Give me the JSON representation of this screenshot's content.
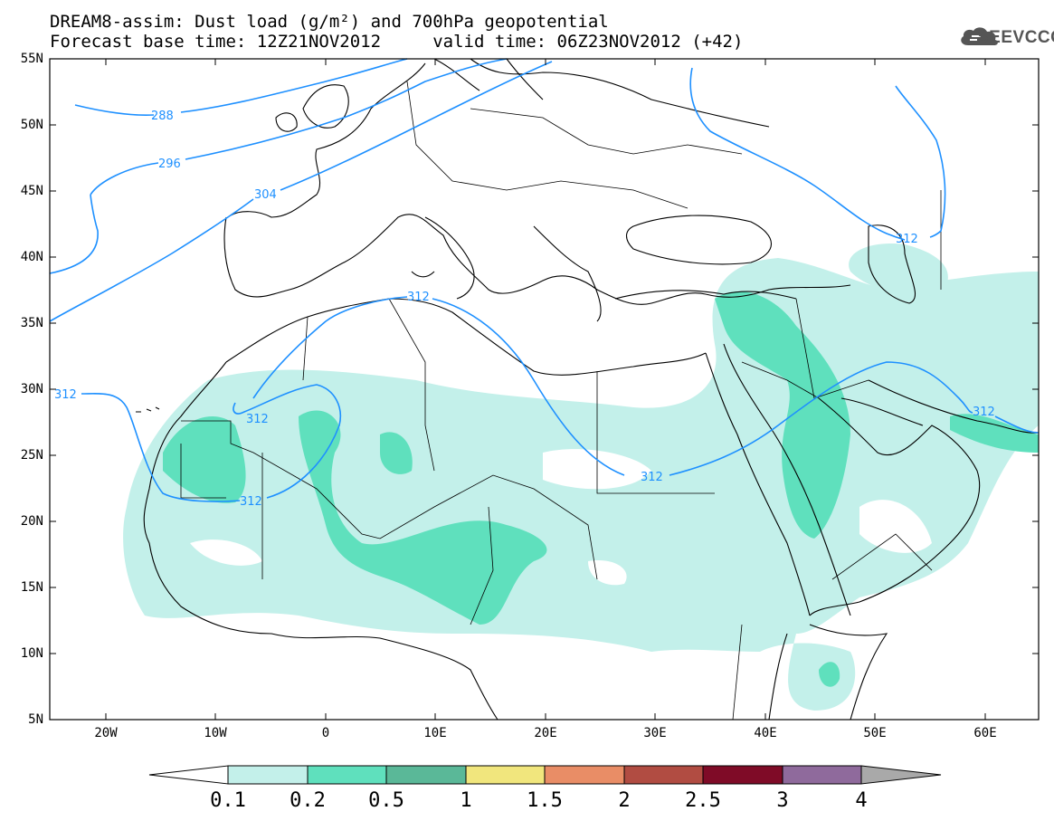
{
  "title": {
    "line1": "DREAM8-assim: Dust load (g/m²) and 700hPa geopotential",
    "line2": "Forecast base time: 12Z21NOV2012     valid time: 06Z23NOV2012 (+42)"
  },
  "logo": {
    "icon": "cloud-icon",
    "text": "SEEVCCC"
  },
  "axes": {
    "lat_labels": [
      "55N",
      "50N",
      "45N",
      "40N",
      "35N",
      "30N",
      "25N",
      "20N",
      "15N",
      "10N",
      "5N"
    ],
    "lon_labels": [
      "20W",
      "10W",
      "0",
      "10E",
      "20E",
      "30E",
      "40E",
      "50E",
      "60E"
    ]
  },
  "contours": {
    "labels": [
      "288",
      "296",
      "304",
      "312",
      "312",
      "312",
      "312",
      "312",
      "312",
      "312"
    ],
    "color": "#1e90ff"
  },
  "colorbar": {
    "labels": [
      "0.1",
      "0.2",
      "0.5",
      "1",
      "1.5",
      "2",
      "2.5",
      "3",
      "4"
    ],
    "colors": [
      "#ffffff",
      "#c3f0ea",
      "#5fe0bd",
      "#5ab898",
      "#f1e67d",
      "#e98d66",
      "#b14c42",
      "#7f0b27",
      "#8f6a9c",
      "#a9a9a9"
    ]
  },
  "dust_colors": {
    "low": "#c3f0ea",
    "mid": "#5fe0bd"
  }
}
